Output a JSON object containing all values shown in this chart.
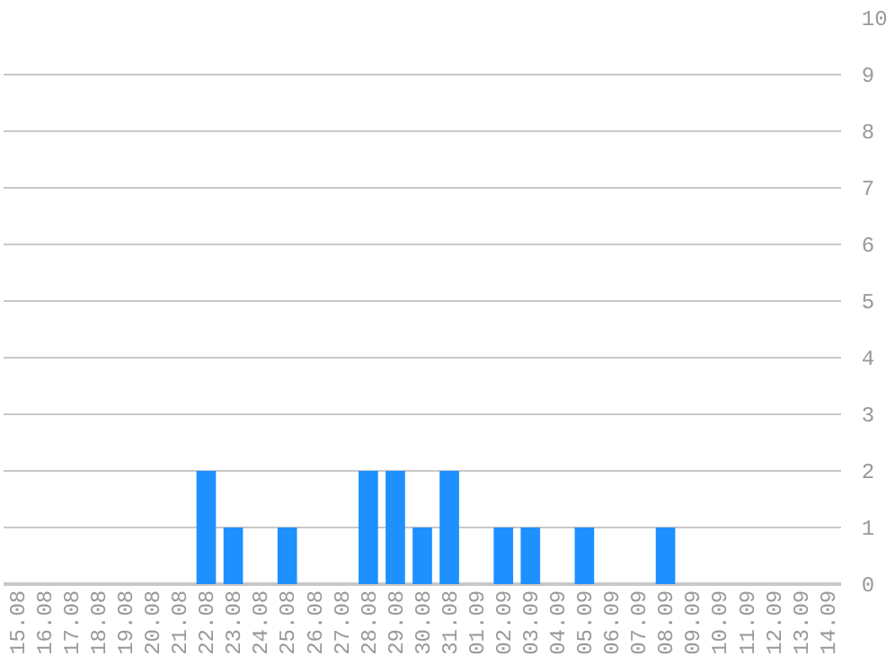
{
  "chart_data": {
    "type": "bar",
    "categories": [
      "15.08",
      "16.08",
      "17.08",
      "18.08",
      "19.08",
      "20.08",
      "21.08",
      "22.08",
      "23.08",
      "24.08",
      "25.08",
      "26.08",
      "27.08",
      "28.08",
      "29.08",
      "30.08",
      "31.08",
      "01.09",
      "02.09",
      "03.09",
      "04.09",
      "05.09",
      "06.09",
      "07.09",
      "08.09",
      "09.09",
      "10.09",
      "11.09",
      "12.09",
      "13.09",
      "14.09"
    ],
    "values": [
      0,
      0,
      0,
      0,
      0,
      0,
      0,
      2,
      1,
      0,
      1,
      0,
      0,
      2,
      2,
      1,
      2,
      0,
      1,
      1,
      0,
      1,
      0,
      0,
      1,
      0,
      0,
      0,
      0,
      0,
      0
    ],
    "color": "#1e90ff",
    "ylim": [
      0,
      10
    ],
    "yticks": [
      0,
      1,
      2,
      3,
      4,
      5,
      6,
      7,
      8,
      9,
      10
    ],
    "grid": "y"
  }
}
